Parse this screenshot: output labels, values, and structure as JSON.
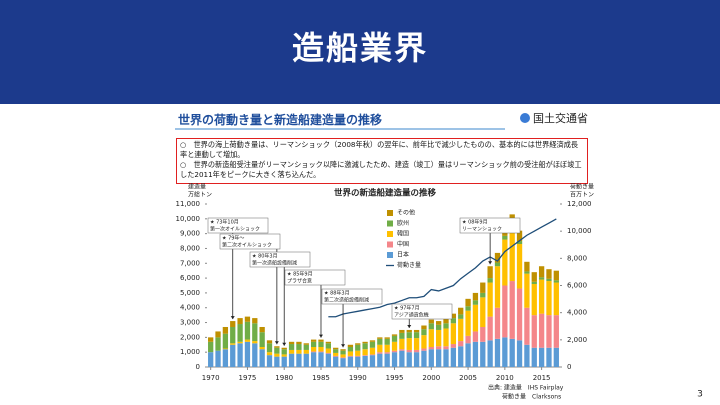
{
  "slide": {
    "title": "造船業界",
    "page": "3"
  },
  "figure": {
    "heading": "世界の荷動き量と新造船建造量の推移",
    "ministry": "国土交通省",
    "notes": [
      "○　世界の海上荷動き量は、リーマンショック（2008年秋）の翌年に、前年比で減少したものの、基本的には世界経済成長率と連動して増加。",
      "○　世界の新造船受注量がリーマンショック以降に激減したため、建造（竣工）量はリーマンショック前の受注船がほぼ竣工した2011年をピークに大きく落ち込んだ。"
    ],
    "source": [
      "出典: 建造量　IHS Fairplay",
      "荷動き量　Clarksons"
    ]
  },
  "chart_data": {
    "type": "bar",
    "stacked": true,
    "title": "世界の新造船建造量の推移",
    "y_label": "建造量",
    "y_unit": "万総トン",
    "y2_label": "荷動き量",
    "y2_unit": "百万トン",
    "x": [
      1970,
      1971,
      1972,
      1973,
      1974,
      1975,
      1976,
      1977,
      1978,
      1979,
      1980,
      1981,
      1982,
      1983,
      1984,
      1985,
      1986,
      1987,
      1988,
      1989,
      1990,
      1991,
      1992,
      1993,
      1994,
      1995,
      1996,
      1997,
      1998,
      1999,
      2000,
      2001,
      2002,
      2003,
      2004,
      2005,
      2006,
      2007,
      2008,
      2009,
      2010,
      2011,
      2012,
      2013,
      2014,
      2015,
      2016,
      2017
    ],
    "xlim": [
      1969.5,
      2017.5
    ],
    "xticks": [
      1970,
      1975,
      1980,
      1985,
      1990,
      1995,
      2000,
      2005,
      2010,
      2015
    ],
    "ylim": [
      0,
      11000
    ],
    "yticks": [
      0,
      {
        "value": 1000,
        "label": "1,000"
      },
      {
        "value": 2000,
        "label": "2,000"
      },
      {
        "value": 3000,
        "label": "3,000"
      },
      {
        "value": 4000,
        "label": "4,000"
      },
      {
        "value": 5000,
        "label": "5,000"
      },
      {
        "value": 6000,
        "label": "6,000"
      },
      {
        "value": 7000,
        "label": "7,000"
      },
      {
        "value": 8000,
        "label": "8,000"
      },
      {
        "value": 9000,
        "label": "9,000"
      },
      {
        "value": 10000,
        "label": "10,000"
      },
      {
        "value": 11000,
        "label": "11,000"
      }
    ],
    "y2lim": [
      0,
      12000
    ],
    "y2ticks": [
      0,
      {
        "value": 2000,
        "label": "2,000"
      },
      {
        "value": 4000,
        "label": "4,000"
      },
      {
        "value": 6000,
        "label": "6,000"
      },
      {
        "value": 8000,
        "label": "8,000"
      },
      {
        "value": 10000,
        "label": "10,000"
      },
      {
        "value": 12000,
        "label": "12,000"
      }
    ],
    "series": [
      {
        "name": "日本",
        "color": "#5b9bd5",
        "values": [
          1000,
          1100,
          1200,
          1500,
          1600,
          1700,
          1600,
          1200,
          800,
          700,
          700,
          900,
          900,
          900,
          1000,
          1000,
          900,
          700,
          600,
          700,
          700,
          750,
          800,
          900,
          900,
          1000,
          1100,
          1000,
          1000,
          1100,
          1200,
          1200,
          1200,
          1300,
          1400,
          1600,
          1700,
          1700,
          1800,
          1900,
          2000,
          1900,
          1800,
          1500,
          1300,
          1300,
          1300,
          1300
        ]
      },
      {
        "name": "中国",
        "color": "#f4868a",
        "values": [
          0,
          0,
          0,
          0,
          0,
          0,
          0,
          0,
          0,
          0,
          0,
          0,
          0,
          0,
          50,
          50,
          50,
          50,
          50,
          50,
          50,
          50,
          50,
          100,
          100,
          100,
          100,
          150,
          150,
          150,
          150,
          200,
          200,
          250,
          350,
          500,
          700,
          1000,
          1600,
          2100,
          3500,
          3900,
          3500,
          2500,
          2200,
          2300,
          2200,
          2200
        ]
      },
      {
        "name": "韓国",
        "color": "#ffc000",
        "values": [
          0,
          0,
          50,
          100,
          100,
          150,
          150,
          150,
          200,
          200,
          150,
          250,
          250,
          250,
          300,
          300,
          300,
          200,
          200,
          300,
          350,
          400,
          450,
          500,
          500,
          600,
          700,
          800,
          800,
          900,
          1200,
          1100,
          1200,
          1400,
          1500,
          1700,
          1800,
          2000,
          2300,
          2800,
          3100,
          3500,
          3000,
          2300,
          2100,
          2300,
          2300,
          2200
        ]
      },
      {
        "name": "欧州",
        "color": "#70ad47",
        "values": [
          700,
          900,
          1000,
          1100,
          1200,
          1200,
          1200,
          1000,
          600,
          400,
          350,
          400,
          400,
          350,
          350,
          350,
          350,
          250,
          250,
          300,
          400,
          400,
          400,
          400,
          400,
          400,
          400,
          400,
          400,
          400,
          400,
          350,
          350,
          350,
          300,
          300,
          300,
          300,
          300,
          250,
          250,
          200,
          200,
          150,
          150,
          150,
          150,
          150
        ]
      },
      {
        "name": "その他",
        "color": "#bf9000",
        "values": [
          300,
          400,
          450,
          400,
          400,
          350,
          350,
          350,
          200,
          100,
          100,
          150,
          150,
          100,
          150,
          150,
          100,
          100,
          100,
          150,
          100,
          100,
          100,
          100,
          100,
          100,
          200,
          150,
          150,
          250,
          250,
          250,
          350,
          300,
          450,
          500,
          500,
          700,
          800,
          650,
          850,
          800,
          700,
          650,
          650,
          750,
          650,
          650
        ]
      },
      {
        "name": "荷動き量",
        "type": "line",
        "axis": "y2",
        "color": "#1f4e79",
        "values": [
          null,
          null,
          null,
          null,
          null,
          null,
          null,
          null,
          null,
          null,
          null,
          null,
          null,
          null,
          null,
          null,
          3700,
          3700,
          3900,
          4000,
          4100,
          4200,
          4300,
          4400,
          4600,
          4700,
          4900,
          5100,
          5100,
          5200,
          5700,
          5600,
          5800,
          6000,
          6500,
          6900,
          7300,
          7800,
          8100,
          7800,
          8500,
          8900,
          9300,
          9700,
          10000,
          10300,
          10600,
          10900
        ]
      }
    ],
    "annotations": [
      {
        "lines": [
          "★ 73年10月",
          "第一次オイルショック"
        ]
      },
      {
        "lines": [
          "★ 79年～",
          "第二次オイルショック"
        ]
      },
      {
        "lines": [
          "★ 80年3月",
          "第一次造船設備削減"
        ]
      },
      {
        "lines": [
          "★ 85年9月",
          "プラザ合意"
        ]
      },
      {
        "lines": [
          "★ 88年3月",
          "第二次造船設備削減"
        ]
      },
      {
        "lines": [
          "★ 97年7月",
          "アジア通貨危機"
        ]
      },
      {
        "lines": [
          "★ 08年9月",
          "リーマンショック"
        ]
      }
    ]
  }
}
